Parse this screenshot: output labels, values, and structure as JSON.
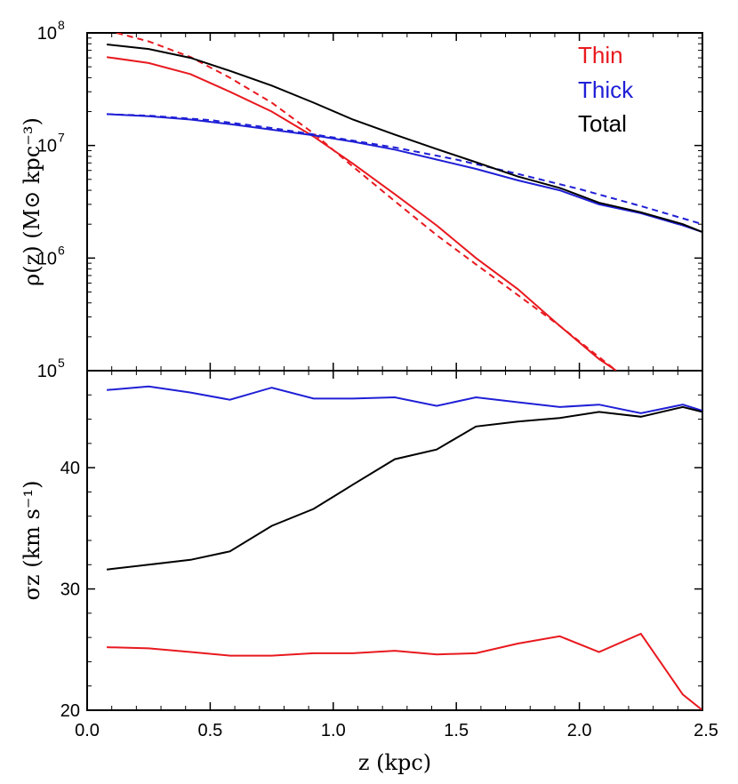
{
  "chart_data": [
    {
      "type": "line",
      "panel": "top",
      "ylabel": "ρ(z) (M⊙ kpc⁻³)",
      "yscale": "log",
      "ylim": [
        100000,
        100000000
      ],
      "xlim": [
        0.0,
        2.5
      ],
      "yticks": [
        {
          "value": 100000,
          "base": "10",
          "exp": "5"
        },
        {
          "value": 1000000,
          "base": "10",
          "exp": "6"
        },
        {
          "value": 10000000,
          "base": "10",
          "exp": "7"
        },
        {
          "value": 100000000,
          "base": "10",
          "exp": "8"
        }
      ],
      "legend_position": "top-right",
      "legend": [
        {
          "label": "Thin",
          "color": "#e8191f"
        },
        {
          "label": "Thick",
          "color": "#1f1fd6"
        },
        {
          "label": "Total",
          "color": "#000000"
        }
      ],
      "series": [
        {
          "name": "Thin",
          "color": "#e8191f",
          "style": "solid",
          "x": [
            0.08,
            0.25,
            0.42,
            0.58,
            0.75,
            0.92,
            1.08,
            1.25,
            1.42,
            1.58,
            1.75,
            1.92,
            2.08,
            2.15
          ],
          "y": [
            61000000,
            54000000,
            43000000,
            30000000,
            20000000,
            12000000,
            6900000,
            3700000,
            1950000,
            1000000,
            530000,
            250000,
            127000,
            100000
          ]
        },
        {
          "name": "Thin",
          "color": "#e8191f",
          "style": "dashed",
          "x": [
            0.12,
            0.25,
            0.42,
            0.58,
            0.75,
            0.92,
            1.08,
            1.25,
            1.42,
            1.58,
            1.75,
            1.92,
            2.1,
            2.15
          ],
          "y": [
            100000000,
            84000000,
            61000000,
            40000000,
            24000000,
            12800000,
            6500000,
            3200000,
            1600000,
            880000,
            470000,
            250000,
            122000,
            100000
          ]
        },
        {
          "name": "Thick",
          "color": "#1f1fd6",
          "style": "solid",
          "x": [
            0.08,
            0.25,
            0.42,
            0.58,
            0.75,
            0.92,
            1.08,
            1.25,
            1.42,
            1.58,
            1.75,
            1.92,
            2.08,
            2.25,
            2.42,
            2.5
          ],
          "y": [
            19000000,
            18200000,
            17000000,
            15500000,
            13800000,
            12300000,
            10800000,
            9200000,
            7500000,
            6200000,
            4900000,
            4000000,
            3000000,
            2500000,
            1950000,
            1700000
          ]
        },
        {
          "name": "Thick",
          "color": "#1f1fd6",
          "style": "dashed",
          "x": [
            0.08,
            0.25,
            0.5,
            0.75,
            1.0,
            1.25,
            1.5,
            1.75,
            2.0,
            2.25,
            2.5
          ],
          "y": [
            19000000,
            18400000,
            16800000,
            14300000,
            11800000,
            9600000,
            7500000,
            5600000,
            4100000,
            2900000,
            2000000
          ]
        },
        {
          "name": "Total",
          "color": "#000000",
          "style": "solid",
          "x": [
            0.08,
            0.25,
            0.42,
            0.58,
            0.75,
            0.92,
            1.08,
            1.25,
            1.42,
            1.58,
            1.75,
            1.92,
            2.08,
            2.25,
            2.42,
            2.5
          ],
          "y": [
            79000000,
            72000000,
            60000000,
            46000000,
            34000000,
            24000000,
            17000000,
            12500000,
            9300000,
            7100000,
            5300000,
            4200000,
            3100000,
            2550000,
            2000000,
            1700000
          ]
        }
      ]
    },
    {
      "type": "line",
      "panel": "bottom",
      "xlabel": "z (kpc)",
      "ylabel": "σz (km s⁻¹)",
      "ylim": [
        20,
        48
      ],
      "xlim": [
        0.0,
        2.5
      ],
      "yticks": [
        20,
        30,
        40
      ],
      "xticks": [
        "0.0",
        "0.5",
        "1.0",
        "1.5",
        "2.0",
        "2.5"
      ],
      "series": [
        {
          "name": "Thin",
          "color": "#e8191f",
          "x": [
            0.08,
            0.25,
            0.42,
            0.58,
            0.75,
            0.92,
            1.08,
            1.25,
            1.42,
            1.58,
            1.75,
            1.92,
            2.08,
            2.25,
            2.42,
            2.5
          ],
          "y": [
            25.2,
            25.1,
            24.8,
            24.5,
            24.5,
            24.7,
            24.7,
            24.9,
            24.6,
            24.7,
            25.5,
            26.1,
            24.8,
            26.3,
            21.3,
            20.0
          ]
        },
        {
          "name": "Thick",
          "color": "#1f1fd6",
          "x": [
            0.08,
            0.25,
            0.42,
            0.58,
            0.75,
            0.92,
            1.08,
            1.25,
            1.42,
            1.58,
            1.75,
            1.92,
            2.08,
            2.25,
            2.42,
            2.5
          ],
          "y": [
            46.4,
            46.7,
            46.2,
            45.6,
            46.6,
            45.7,
            45.7,
            45.8,
            45.1,
            45.8,
            45.4,
            45.0,
            45.2,
            44.5,
            45.2,
            44.7
          ]
        },
        {
          "name": "Total",
          "color": "#000000",
          "x": [
            0.08,
            0.25,
            0.42,
            0.58,
            0.75,
            0.92,
            1.08,
            1.25,
            1.42,
            1.58,
            1.75,
            1.92,
            2.08,
            2.25,
            2.42,
            2.5
          ],
          "y": [
            31.6,
            32.0,
            32.4,
            33.1,
            35.2,
            36.6,
            38.6,
            40.7,
            41.5,
            43.4,
            43.8,
            44.1,
            44.6,
            44.2,
            45.0,
            44.6
          ]
        }
      ]
    }
  ]
}
